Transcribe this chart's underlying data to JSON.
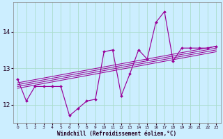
{
  "xlabel": "Windchill (Refroidissement éolien,°C)",
  "bg_color": "#cceeff",
  "line_color": "#990099",
  "grid_color": "#aaddcc",
  "hours": [
    0,
    1,
    2,
    3,
    4,
    5,
    6,
    7,
    8,
    9,
    10,
    11,
    12,
    13,
    14,
    15,
    16,
    17,
    18,
    19,
    20,
    21,
    22,
    23
  ],
  "series_main": [
    12.7,
    12.1,
    12.5,
    12.5,
    12.5,
    12.5,
    11.7,
    11.9,
    12.1,
    12.15,
    13.45,
    13.5,
    12.25,
    12.85,
    13.5,
    13.25,
    14.25,
    14.55,
    13.2,
    13.55,
    13.55,
    13.55,
    13.55,
    13.6
  ],
  "trend_starts": [
    12.45,
    12.5,
    12.55,
    12.6
  ],
  "trend_ends": [
    13.45,
    13.5,
    13.55,
    13.6
  ],
  "ylim": [
    11.5,
    14.8
  ],
  "ytick_vals": [
    12,
    13,
    14
  ],
  "xlim": [
    -0.5,
    23.5
  ],
  "xtick_labels": [
    "0",
    "1",
    "2",
    "3",
    "4",
    "5",
    "6",
    "7",
    "8",
    "9",
    "10",
    "11",
    "12",
    "13",
    "14",
    "15",
    "16",
    "17",
    "18",
    "19",
    "20",
    "21",
    "22",
    "23"
  ]
}
